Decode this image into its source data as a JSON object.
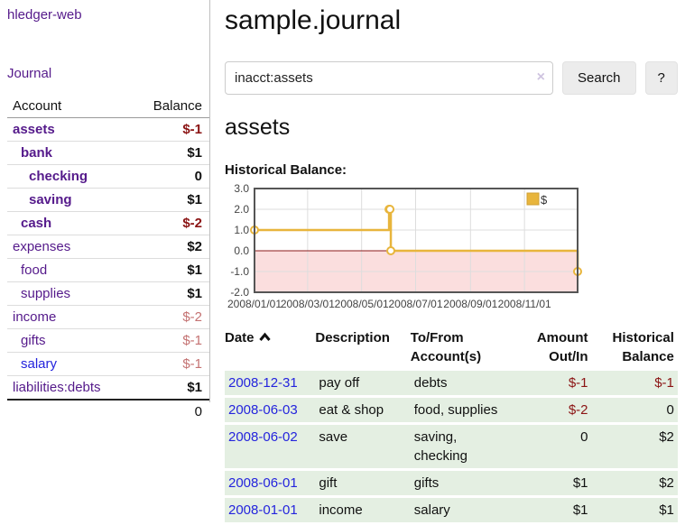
{
  "colors": {
    "link_purple": "#551a8b",
    "link_blue": "#2424dd",
    "negative_strong": "#8b1414",
    "negative_weak": "#c47272",
    "row_green": "#e4efe2",
    "chart_gold": "#e8b53c",
    "chart_gold_border": "#cfa035",
    "chart_negative_fill": "#fbdede",
    "chart_zero_line": "#8b1a1a",
    "chart_border": "#555555",
    "grid_line": "#dddddd"
  },
  "sidebar": {
    "brand": "hledger-web",
    "journal_link": "Journal",
    "accounts": {
      "headers": {
        "account": "Account",
        "balance": "Balance"
      },
      "rows": [
        {
          "name": "assets",
          "depth": 1,
          "bold": true,
          "link": "purple",
          "balance": "$-1",
          "balance_class": "neg-strong",
          "balance_bold": true
        },
        {
          "name": "bank",
          "depth": 2,
          "bold": true,
          "link": "purple",
          "balance": "$1",
          "balance_class": "",
          "balance_bold": true
        },
        {
          "name": "checking",
          "depth": 3,
          "bold": true,
          "link": "purple",
          "balance": "0",
          "balance_class": "",
          "balance_bold": true
        },
        {
          "name": "saving",
          "depth": 3,
          "bold": true,
          "link": "purple",
          "balance": "$1",
          "balance_class": "",
          "balance_bold": true
        },
        {
          "name": "cash",
          "depth": 2,
          "bold": true,
          "link": "purple",
          "balance": "$-2",
          "balance_class": "neg-strong",
          "balance_bold": true
        },
        {
          "name": "expenses",
          "depth": 1,
          "bold": false,
          "link": "purple",
          "balance": "$2",
          "balance_class": "",
          "balance_bold": true
        },
        {
          "name": "food",
          "depth": 2,
          "bold": false,
          "link": "purple",
          "balance": "$1",
          "balance_class": "",
          "balance_bold": true
        },
        {
          "name": "supplies",
          "depth": 2,
          "bold": false,
          "link": "purple",
          "balance": "$1",
          "balance_class": "",
          "balance_bold": true
        },
        {
          "name": "income",
          "depth": 1,
          "bold": false,
          "link": "purple",
          "balance": "$-2",
          "balance_class": "neg-weak",
          "balance_bold": false
        },
        {
          "name": "gifts",
          "depth": 2,
          "bold": false,
          "link": "purple",
          "balance": "$-1",
          "balance_class": "neg-weak",
          "balance_bold": false
        },
        {
          "name": "salary",
          "depth": 2,
          "bold": false,
          "link": "blue",
          "balance": "$-1",
          "balance_class": "neg-weak",
          "balance_bold": false
        },
        {
          "name": "liabilities:debts",
          "depth": 1,
          "bold": false,
          "link": "purple",
          "balance": "$1",
          "balance_class": "",
          "balance_bold": true
        }
      ],
      "total": "0"
    }
  },
  "main": {
    "title": "sample.journal",
    "search": {
      "value": "inacct:assets",
      "clear_icon": "×",
      "search_button": "Search",
      "help_button": "?"
    },
    "account_heading": "assets",
    "chart_title": "Historical Balance:"
  },
  "chart_data": {
    "type": "line",
    "step": true,
    "title": "Historical Balance",
    "x_range": {
      "start": "2008-01-01",
      "end": "2008-12-31"
    },
    "ylim": [
      -2,
      3
    ],
    "yticks": [
      "3.0",
      "2.0",
      "1.0",
      "0.0",
      "-1.0",
      "-2.0"
    ],
    "xticks": [
      {
        "label": "2008/01/01",
        "date": "2008-01-01"
      },
      {
        "label": "2008/03/01",
        "date": "2008-03-01"
      },
      {
        "label": "2008/05/01",
        "date": "2008-05-01"
      },
      {
        "label": "2008/07/01",
        "date": "2008-07-01"
      },
      {
        "label": "2008/09/01",
        "date": "2008-09-01"
      },
      {
        "label": "2008/11/01",
        "date": "2008-11-01"
      }
    ],
    "grid": true,
    "legend": {
      "label": "$",
      "position": "top-right"
    },
    "series": [
      {
        "name": "$",
        "points": [
          {
            "date": "2008-01-01",
            "value": 1
          },
          {
            "date": "2008-06-01",
            "value": 2
          },
          {
            "date": "2008-06-02",
            "value": 2
          },
          {
            "date": "2008-06-03",
            "value": 0
          },
          {
            "date": "2008-12-31",
            "value": -1
          }
        ]
      }
    ]
  },
  "register": {
    "headers": [
      {
        "lines": [
          "Date"
        ],
        "sort": "asc",
        "align": "left"
      },
      {
        "lines": [
          "Description"
        ],
        "align": "left"
      },
      {
        "lines": [
          "To/From",
          "Account(s)"
        ],
        "align": "left"
      },
      {
        "lines": [
          "Amount",
          "Out/In"
        ],
        "align": "right"
      },
      {
        "lines": [
          "Historical",
          "Balance"
        ],
        "align": "right"
      }
    ],
    "rows": [
      {
        "date": "2008-12-31",
        "description": "pay off",
        "accounts": [
          "debts"
        ],
        "amount": "$-1",
        "amount_class": "neg-strong",
        "balance": "$-1",
        "balance_class": "neg-strong"
      },
      {
        "date": "2008-06-03",
        "description": "eat & shop",
        "accounts": [
          "food, supplies"
        ],
        "amount": "$-2",
        "amount_class": "neg-strong",
        "balance": "0",
        "balance_class": ""
      },
      {
        "date": "2008-06-02",
        "description": "save",
        "accounts": [
          "saving,",
          "checking"
        ],
        "amount": "0",
        "amount_class": "",
        "balance": "$2",
        "balance_class": ""
      },
      {
        "date": "2008-06-01",
        "description": "gift",
        "accounts": [
          "gifts"
        ],
        "amount": "$1",
        "amount_class": "",
        "balance": "$2",
        "balance_class": ""
      },
      {
        "date": "2008-01-01",
        "description": "income",
        "accounts": [
          "salary"
        ],
        "amount": "$1",
        "amount_class": "",
        "balance": "$1",
        "balance_class": ""
      }
    ]
  }
}
